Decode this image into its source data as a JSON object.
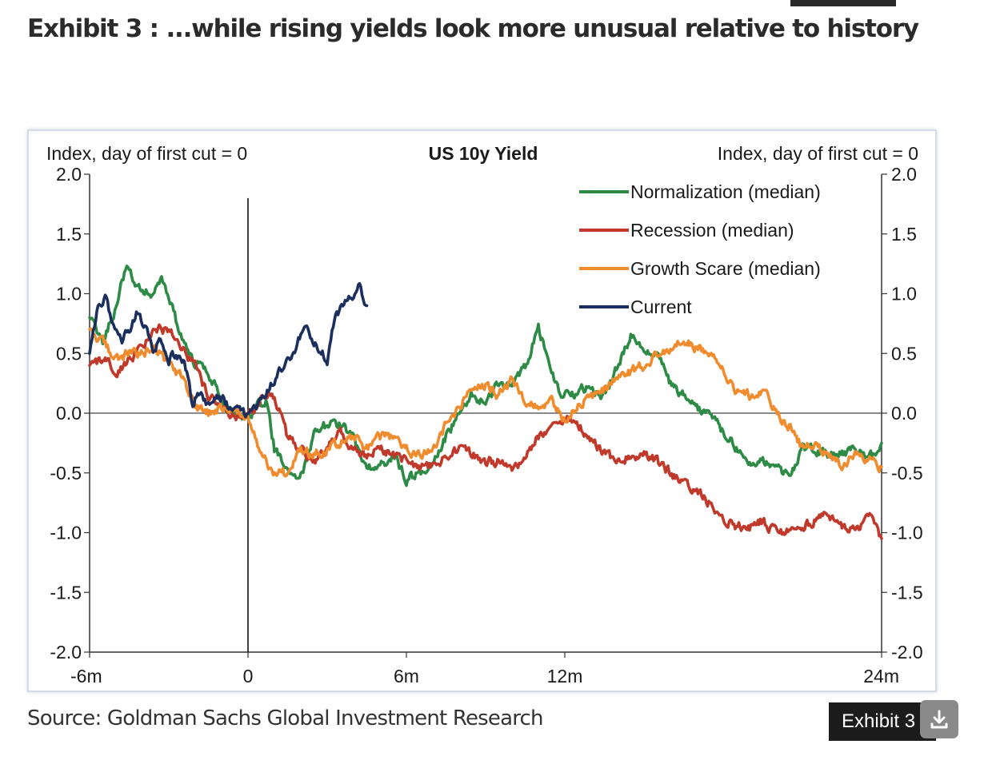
{
  "page": {
    "title": "Exhibit 3 : ...while rising yields look more unusual relative to history",
    "source": "Source: Goldman Sachs Global Investment Research",
    "exhibit_label": "Exhibit 3",
    "download_icon": "download-icon"
  },
  "chart_data": {
    "type": "line",
    "title": "US 10y Yield",
    "ylabel_left": "Index, day of first cut = 0",
    "ylabel_right": "Index, day of first cut = 0",
    "x_unit": "months relative to first cut",
    "xlim": [
      -6,
      24
    ],
    "ylim": [
      -2.0,
      2.0
    ],
    "x_ticks": [
      -6,
      0,
      6,
      12,
      24
    ],
    "x_tick_labels": [
      "-6m",
      "0",
      "6m",
      "12m",
      "24m"
    ],
    "y_ticks": [
      2.0,
      1.5,
      1.0,
      0.5,
      0.0,
      -0.5,
      -1.0,
      -1.5,
      -2.0
    ],
    "y_tick_labels": [
      "2.0",
      "1.5",
      "1.0",
      "0.5",
      "0.0",
      "-0.5",
      "-1.0",
      "-1.5",
      "-2.0"
    ],
    "vertical_line_x": 0,
    "legend_position": "top-right",
    "series": [
      {
        "name": "Normalization (median)",
        "color": "#2e8b45",
        "x": [
          -6,
          -5.5,
          -5,
          -4.6,
          -4.2,
          -3.7,
          -3.3,
          -2.9,
          -2.5,
          -2,
          -1.5,
          -1,
          -0.5,
          0,
          0.3,
          0.7,
          1,
          1.4,
          1.8,
          2.1,
          2.5,
          3,
          3.5,
          4,
          4.5,
          5,
          5.5,
          6,
          6.5,
          7,
          7.5,
          8,
          8.5,
          9,
          9.5,
          10,
          10.5,
          11,
          11.4,
          11.8,
          12.2,
          12.6,
          13,
          13.5,
          14,
          14.5,
          15,
          15.5,
          16,
          16.5,
          17,
          17.5,
          18,
          18.5,
          19,
          19.5,
          20,
          20.5,
          21,
          21.5,
          22,
          22.5,
          23,
          23.5,
          24
        ],
        "y": [
          0.8,
          0.6,
          0.9,
          1.25,
          1.05,
          1.0,
          1.15,
          0.9,
          0.6,
          0.4,
          0.35,
          0.1,
          0.0,
          -0.05,
          0.05,
          0.1,
          -0.3,
          -0.45,
          -0.55,
          -0.5,
          -0.15,
          -0.1,
          -0.1,
          -0.2,
          -0.45,
          -0.45,
          -0.35,
          -0.55,
          -0.5,
          -0.45,
          -0.2,
          0.0,
          0.15,
          0.1,
          0.25,
          0.2,
          0.4,
          0.7,
          0.45,
          0.15,
          0.15,
          0.2,
          0.2,
          0.15,
          0.4,
          0.65,
          0.5,
          0.5,
          0.25,
          0.15,
          0.05,
          0.0,
          -0.15,
          -0.3,
          -0.45,
          -0.4,
          -0.45,
          -0.55,
          -0.3,
          -0.3,
          -0.35,
          -0.35,
          -0.3,
          -0.4,
          -0.25
        ]
      },
      {
        "name": "Recession (median)",
        "color": "#c0392b",
        "x": [
          -6,
          -5.5,
          -5,
          -4.5,
          -4,
          -3.5,
          -3,
          -2.5,
          -2,
          -1.5,
          -1,
          -0.5,
          0,
          0.5,
          1,
          1.5,
          2,
          2.5,
          3,
          3.5,
          4,
          4.5,
          5,
          5.5,
          6,
          6.5,
          7,
          7.5,
          8,
          8.5,
          9,
          9.5,
          10,
          10.5,
          11,
          11.5,
          12,
          12.5,
          13,
          13.5,
          14,
          14.5,
          15,
          15.5,
          16,
          16.5,
          17,
          17.5,
          18,
          18.5,
          19,
          19.5,
          20,
          20.5,
          21,
          21.5,
          22,
          22.5,
          23,
          23.5,
          24
        ],
        "y": [
          0.4,
          0.45,
          0.35,
          0.45,
          0.55,
          0.7,
          0.7,
          0.55,
          0.4,
          0.15,
          0.05,
          -0.05,
          0.0,
          0.1,
          0.15,
          -0.2,
          -0.3,
          -0.4,
          -0.3,
          -0.15,
          -0.3,
          -0.35,
          -0.3,
          -0.35,
          -0.4,
          -0.45,
          -0.45,
          -0.35,
          -0.3,
          -0.35,
          -0.4,
          -0.4,
          -0.5,
          -0.35,
          -0.2,
          -0.1,
          -0.05,
          -0.1,
          -0.2,
          -0.35,
          -0.4,
          -0.35,
          -0.35,
          -0.4,
          -0.5,
          -0.6,
          -0.65,
          -0.75,
          -0.9,
          -0.95,
          -0.95,
          -0.9,
          -1.0,
          -1.0,
          -0.95,
          -0.9,
          -0.85,
          -0.95,
          -1.0,
          -0.85,
          -1.05
        ]
      },
      {
        "name": "Growth Scare (median)",
        "color": "#f08c2e",
        "x": [
          -6,
          -5.5,
          -5,
          -4.5,
          -4,
          -3.5,
          -3,
          -2.5,
          -2,
          -1.5,
          -1,
          -0.5,
          0,
          0.5,
          1,
          1.5,
          2,
          2.5,
          3,
          3.5,
          4,
          4.5,
          5,
          5.5,
          6,
          6.5,
          7,
          7.5,
          8,
          8.5,
          9,
          9.5,
          10,
          10.5,
          11,
          11.5,
          12,
          12.5,
          13,
          13.5,
          14,
          14.5,
          15,
          15.5,
          16,
          16.5,
          17,
          17.5,
          18,
          18.5,
          19,
          19.5,
          20,
          20.5,
          21,
          21.5,
          22,
          22.5,
          23,
          23.5,
          24
        ],
        "y": [
          0.7,
          0.6,
          0.45,
          0.5,
          0.5,
          0.55,
          0.4,
          0.3,
          0.05,
          0.0,
          0.05,
          0.0,
          -0.05,
          -0.35,
          -0.5,
          -0.5,
          -0.3,
          -0.35,
          -0.3,
          -0.25,
          -0.2,
          -0.3,
          -0.2,
          -0.2,
          -0.3,
          -0.35,
          -0.3,
          -0.1,
          0.05,
          0.2,
          0.25,
          0.15,
          0.3,
          0.1,
          0.05,
          0.1,
          -0.05,
          0.05,
          0.15,
          0.2,
          0.3,
          0.35,
          0.4,
          0.5,
          0.55,
          0.6,
          0.55,
          0.5,
          0.35,
          0.2,
          0.15,
          0.2,
          0.0,
          -0.1,
          -0.3,
          -0.25,
          -0.35,
          -0.45,
          -0.35,
          -0.4,
          -0.45
        ]
      },
      {
        "name": "Current",
        "color": "#1b2f5e",
        "x": [
          -6,
          -5.7,
          -5.4,
          -5.1,
          -4.8,
          -4.5,
          -4.2,
          -3.9,
          -3.6,
          -3.3,
          -3.0,
          -2.7,
          -2.4,
          -2.1,
          -1.8,
          -1.5,
          -1.2,
          -0.9,
          -0.6,
          -0.3,
          0,
          0.3,
          0.6,
          0.9,
          1.2,
          1.5,
          1.8,
          2.1,
          2.4,
          2.7,
          3.0,
          3.3,
          3.6,
          3.9,
          4.2,
          4.5
        ],
        "y": [
          0.5,
          0.85,
          0.95,
          0.75,
          0.6,
          0.7,
          0.85,
          0.7,
          0.55,
          0.6,
          0.45,
          0.5,
          0.4,
          0.1,
          0.2,
          0.05,
          0.15,
          0.1,
          0.0,
          0.05,
          -0.05,
          0.05,
          0.1,
          0.25,
          0.35,
          0.45,
          0.55,
          0.7,
          0.65,
          0.55,
          0.45,
          0.8,
          0.9,
          0.95,
          1.05,
          0.9
        ]
      }
    ]
  }
}
